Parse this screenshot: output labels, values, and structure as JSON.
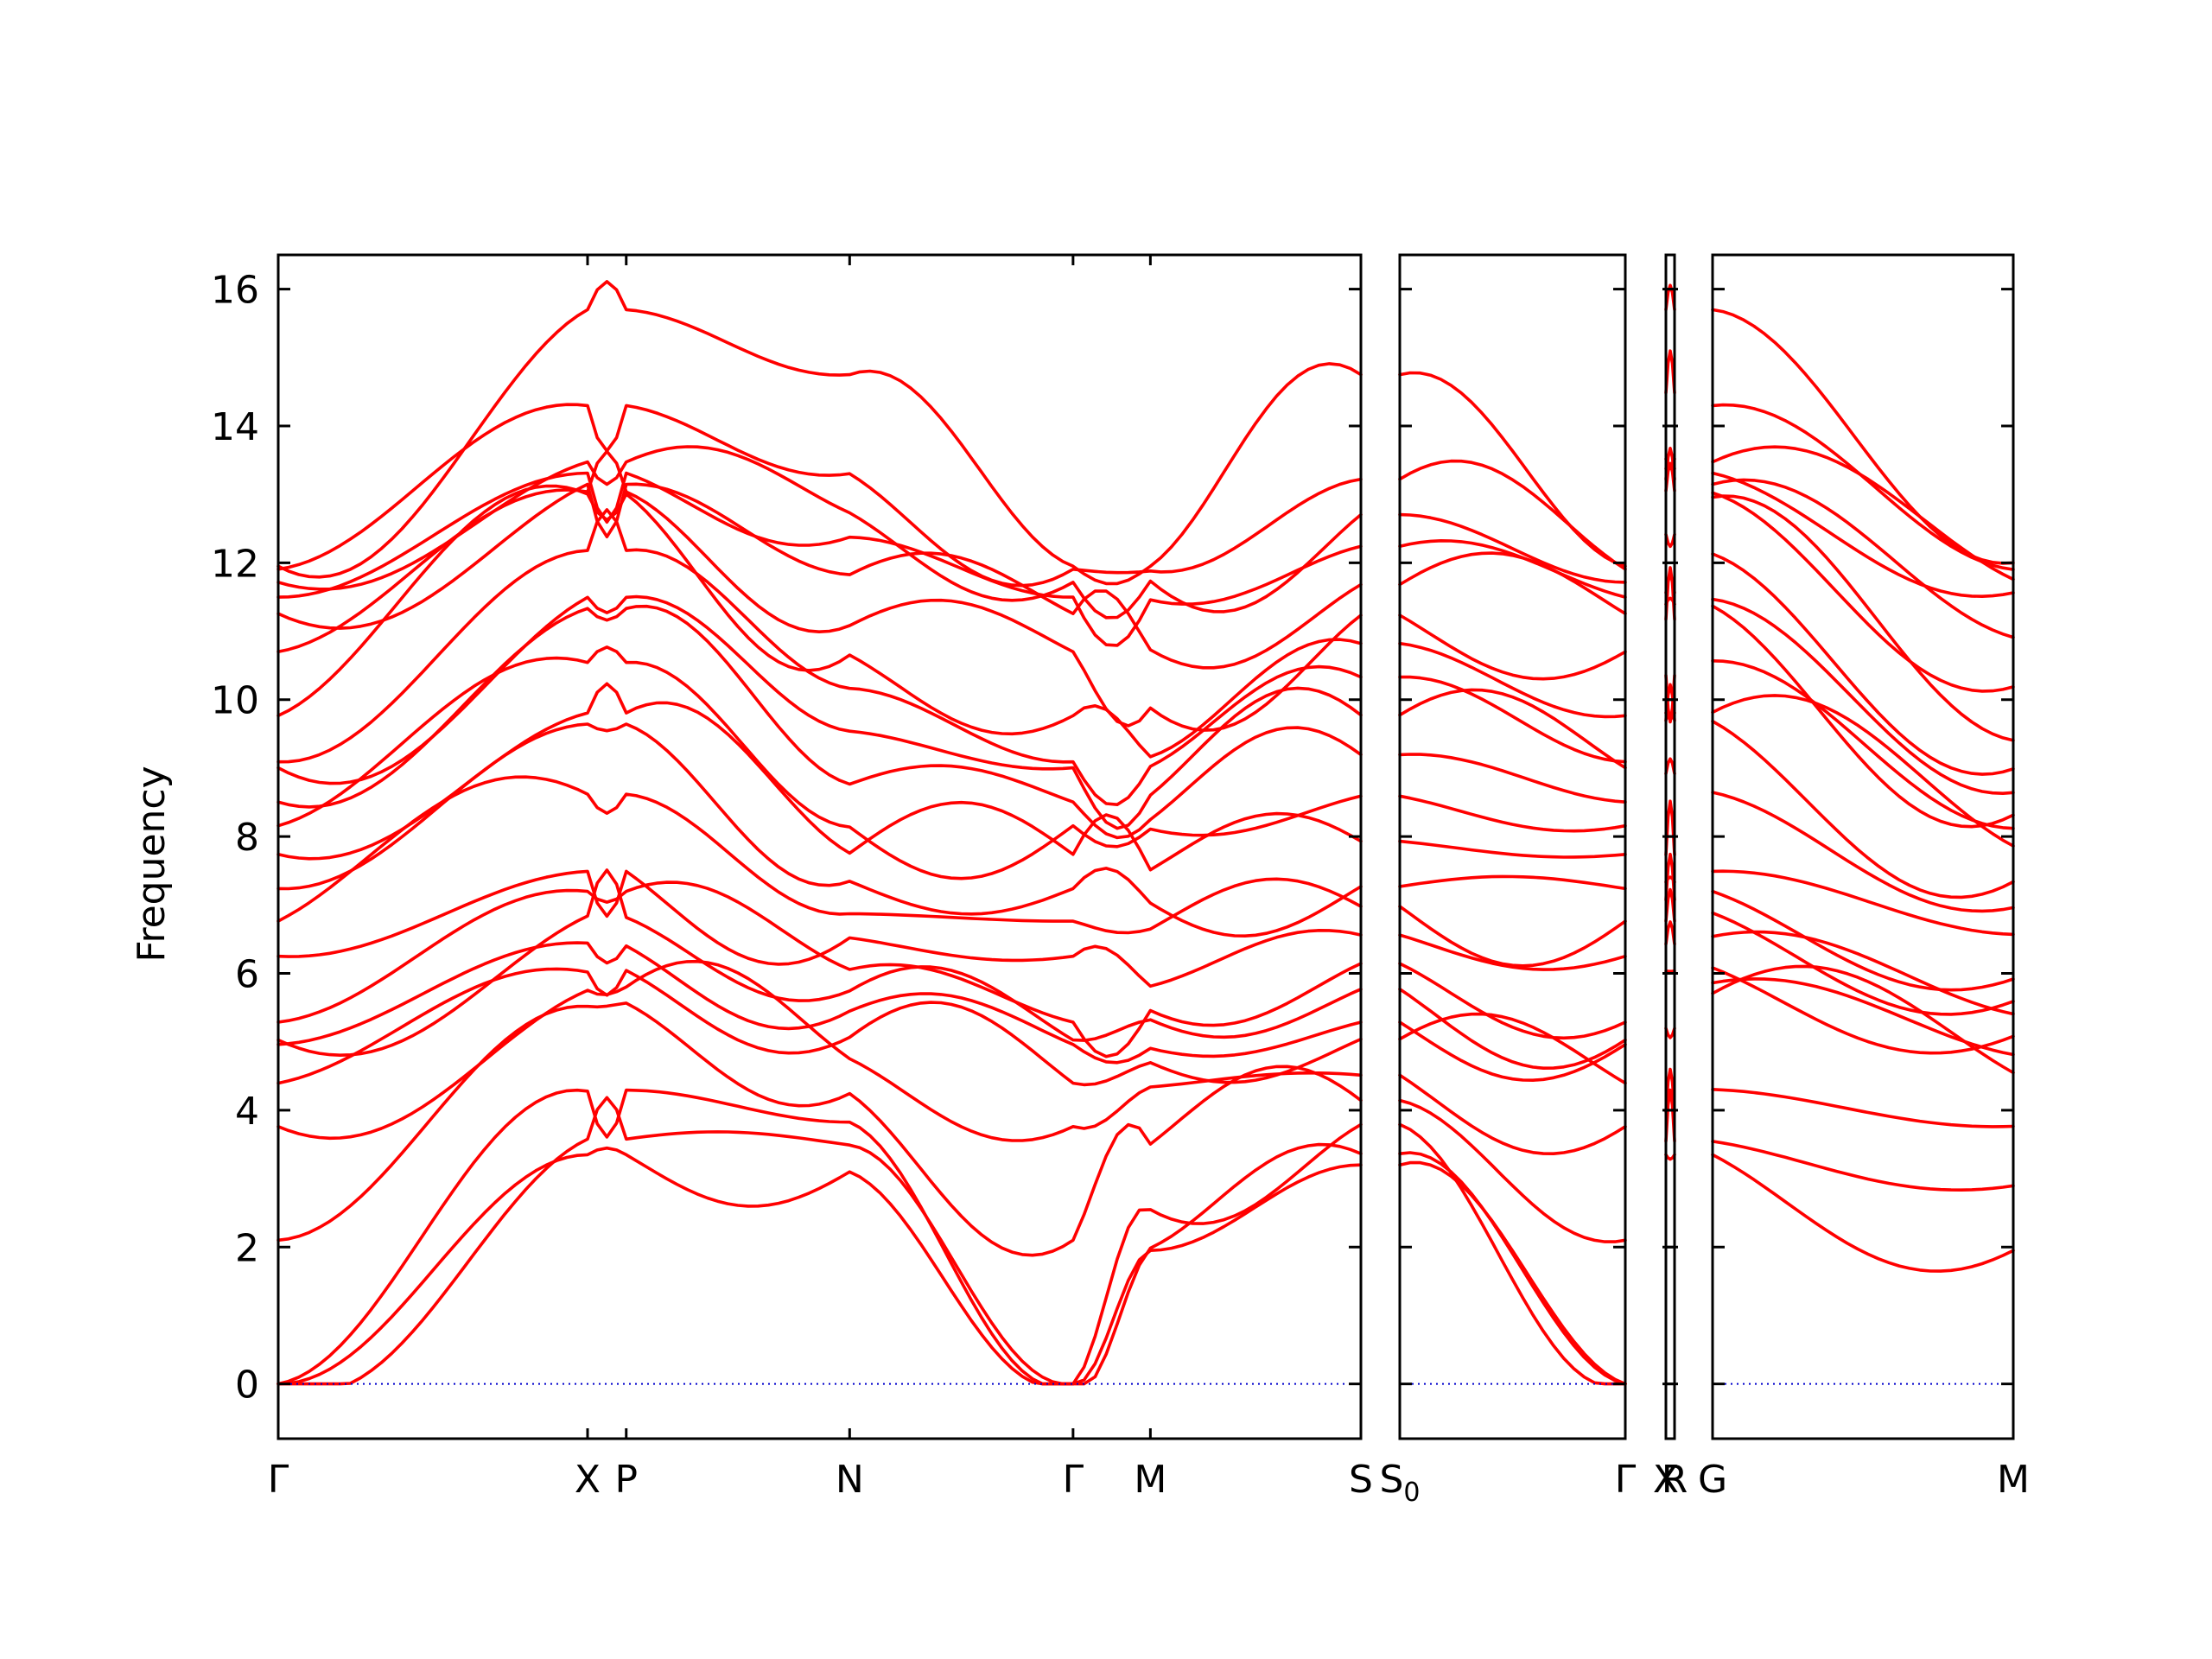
{
  "chart_data": {
    "type": "line",
    "ylabel": "Frequency",
    "ylim": [
      -0.8,
      16.5
    ],
    "yticks": [
      0,
      2,
      4,
      6,
      8,
      10,
      12,
      14,
      16
    ],
    "colors": {
      "bands": "#ff0000",
      "zero_line": "#0000cc",
      "frame": "#000000"
    },
    "panels": [
      {
        "name": "panel-1",
        "segments": [
          {
            "from": "Γ",
            "to": "X",
            "length": 3.6
          },
          {
            "from": "X",
            "to": "P",
            "length": 0.45
          },
          {
            "from": "P",
            "to": "N",
            "length": 2.6
          },
          {
            "from": "N",
            "to": "Γ",
            "length": 2.6
          },
          {
            "from": "Γ",
            "to": "M",
            "length": 0.9
          },
          {
            "from": "M",
            "to": "S",
            "length": 2.45
          }
        ],
        "tick_labels": [
          "Γ",
          "X",
          "P",
          "N",
          "Γ",
          "M",
          "S"
        ]
      },
      {
        "name": "panel-2",
        "segments": [
          {
            "from": "S0",
            "to": "Γ",
            "length": 2.6
          }
        ],
        "tick_labels": [
          "S",
          "Γ"
        ],
        "tick_subs": [
          "0",
          ""
        ]
      },
      {
        "name": "panel-3",
        "segments": [
          {
            "from": "X",
            "to": "R",
            "length": 0.1
          }
        ],
        "tick_labels": [
          "X",
          "R"
        ]
      },
      {
        "name": "panel-4",
        "segments": [
          {
            "from": "G",
            "to": "M",
            "length": 3.5
          }
        ],
        "tick_labels": [
          "G",
          "M"
        ]
      }
    ],
    "band_values": {
      "Γ": [
        0,
        0,
        0,
        3.45,
        4.1,
        4.95,
        5.0,
        5.3,
        6.45,
        6.9,
        7.5,
        8.05,
        8.4,
        9.0,
        9.1,
        9.95,
        11.1,
        11.4,
        11.65,
        11.9,
        11.95
      ],
      "X": [
        3.35,
        3.7,
        5.6,
        5.85,
        6.5,
        7.1,
        7.55,
        9.6,
        9.85,
        11.3,
        11.55,
        13.0,
        13.05,
        13.3,
        13.55,
        15.7
      ],
      "P": [
        3.35,
        3.7,
        5.65,
        5.9,
        6.45,
        7.1,
        7.55,
        9.6,
        9.85,
        11.3,
        11.55,
        13.0,
        13.05,
        13.3,
        13.55,
        15.7
      ],
      "N": [
        3.1,
        3.6,
        4.0,
        4.7,
        5.1,
        5.6,
        5.9,
        6.5,
        6.95,
        7.6,
        8.0,
        8.8,
        9.8,
        10.5,
        11.0,
        11.95,
        12.6,
        12.9,
        14.75
      ],
      "Γ2": [
        0,
        0,
        0,
        3.45,
        4.1,
        4.95,
        5.0,
        5.3,
        6.45,
        6.9,
        7.5,
        8.05,
        8.4,
        9.0,
        9.1,
        9.95,
        11.1,
        11.4,
        11.65,
        11.9,
        11.95
      ],
      "M": [
        1.95,
        2.0,
        3.4,
        4.6,
        4.8,
        5.4,
        5.5,
        6.7,
        7.2,
        8.1,
        8.3,
        9.0,
        9.2,
        10.5,
        11.55,
        11.85,
        11.95
      ],
      "S": [
        3.2,
        3.4,
        4.0,
        4.3,
        5.0,
        5.3,
        5.9,
        6.3,
        6.9,
        7.2,
        8.0,
        8.8,
        9.5,
        10.2,
        10.8,
        11.3,
        11.85,
        12.6,
        12.9,
        14.75
      ],
      "X_R": [
        3.35,
        3.7,
        5.85,
        6.55,
        7.1,
        7.55,
        9.65,
        9.85,
        11.3,
        11.5,
        13.0,
        13.3,
        13.55,
        15.7
      ],
      "G": [
        3.35,
        3.65,
        5.8,
        5.9,
        6.6,
        7.1,
        7.55,
        9.65,
        9.85,
        11.35,
        11.5,
        12.95,
        13.05,
        13.3,
        13.55,
        15.7
      ],
      "M2": [
        1.95,
        3.4,
        4.6,
        4.95,
        5.45,
        5.7,
        6.7,
        7.2,
        8.0,
        8.25,
        8.75,
        9.3,
        10.5,
        11.55,
        11.85,
        12.0
      ]
    }
  }
}
